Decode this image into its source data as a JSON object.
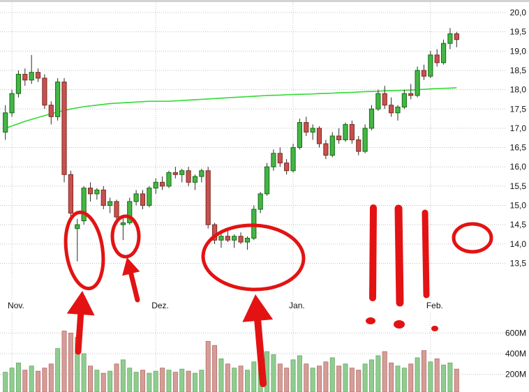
{
  "chart_data": {
    "type": "candlestick",
    "title": "",
    "price_axis": {
      "side": "right",
      "range": [
        13.3,
        20.3
      ],
      "ticks": [
        {
          "value": 20.0,
          "label": "20,0"
        },
        {
          "value": 19.5,
          "label": "19,5"
        },
        {
          "value": 19.0,
          "label": "19,0"
        },
        {
          "value": 18.5,
          "label": "18,5"
        },
        {
          "value": 18.0,
          "label": "18,0"
        },
        {
          "value": 17.5,
          "label": "17,5"
        },
        {
          "value": 17.0,
          "label": "17,0"
        },
        {
          "value": 16.5,
          "label": "16,5"
        },
        {
          "value": 16.0,
          "label": "16,0"
        },
        {
          "value": 15.5,
          "label": "15,5"
        },
        {
          "value": 15.0,
          "label": "15,0"
        },
        {
          "value": 14.5,
          "label": "14,5"
        },
        {
          "value": 14.0,
          "label": "14,0"
        },
        {
          "value": 13.5,
          "label": "13,5"
        }
      ]
    },
    "x_axis": {
      "labels": [
        {
          "index": 1,
          "label": "Nov."
        },
        {
          "index": 23,
          "label": "Dez."
        },
        {
          "index": 44,
          "label": "Jan."
        },
        {
          "index": 65,
          "label": "Feb."
        }
      ]
    },
    "volume_axis": {
      "ticks": [
        {
          "value": 600,
          "label": "600M"
        },
        {
          "value": 400,
          "label": "400M"
        },
        {
          "value": 200,
          "label": "200M"
        }
      ]
    },
    "series": {
      "candles_ohlc": [
        [
          16.9,
          17.6,
          16.7,
          17.4
        ],
        [
          17.4,
          18.0,
          17.3,
          17.9
        ],
        [
          17.9,
          18.5,
          17.8,
          18.4
        ],
        [
          18.4,
          18.55,
          18.1,
          18.25
        ],
        [
          18.25,
          18.9,
          18.15,
          18.45
        ],
        [
          18.45,
          18.55,
          18.2,
          18.3
        ],
        [
          18.3,
          18.4,
          17.5,
          17.6
        ],
        [
          17.6,
          17.7,
          17.1,
          17.3
        ],
        [
          17.3,
          18.3,
          17.2,
          18.2
        ],
        [
          18.2,
          18.3,
          15.6,
          15.8
        ],
        [
          15.8,
          15.9,
          14.6,
          14.8
        ],
        [
          14.4,
          14.65,
          13.55,
          14.5
        ],
        [
          14.6,
          15.5,
          14.5,
          15.45
        ],
        [
          15.45,
          15.6,
          15.1,
          15.3
        ],
        [
          15.3,
          15.45,
          15.15,
          15.4
        ],
        [
          15.4,
          15.5,
          14.9,
          15.0
        ],
        [
          15.0,
          15.2,
          14.8,
          15.1
        ],
        [
          15.1,
          15.15,
          14.5,
          14.7
        ],
        [
          14.5,
          14.7,
          14.1,
          14.55
        ],
        [
          14.55,
          15.2,
          14.5,
          15.1
        ],
        [
          15.1,
          15.4,
          15.0,
          15.3
        ],
        [
          15.3,
          15.4,
          14.9,
          15.0
        ],
        [
          15.0,
          15.5,
          14.95,
          15.45
        ],
        [
          15.45,
          15.7,
          15.3,
          15.6
        ],
        [
          15.6,
          15.75,
          15.4,
          15.5
        ],
        [
          15.5,
          15.9,
          15.45,
          15.85
        ],
        [
          15.85,
          16.0,
          15.7,
          15.8
        ],
        [
          15.8,
          15.95,
          15.6,
          15.9
        ],
        [
          15.9,
          16.0,
          15.5,
          15.6
        ],
        [
          15.6,
          15.8,
          15.4,
          15.75
        ],
        [
          15.75,
          15.95,
          15.6,
          15.9
        ],
        [
          15.9,
          16.0,
          14.4,
          14.5
        ],
        [
          14.5,
          14.55,
          14.0,
          14.1
        ],
        [
          14.1,
          14.3,
          13.9,
          14.2
        ],
        [
          14.2,
          14.35,
          14.05,
          14.1
        ],
        [
          14.1,
          14.25,
          13.9,
          14.2
        ],
        [
          14.2,
          14.3,
          14.0,
          14.05
        ],
        [
          14.05,
          14.2,
          13.85,
          14.15
        ],
        [
          14.15,
          15.0,
          14.1,
          14.9
        ],
        [
          14.9,
          15.35,
          14.8,
          15.3
        ],
        [
          15.3,
          16.1,
          15.25,
          16.0
        ],
        [
          16.0,
          16.45,
          15.9,
          16.35
        ],
        [
          16.35,
          16.5,
          16.0,
          16.1
        ],
        [
          16.1,
          16.2,
          15.8,
          15.9
        ],
        [
          15.9,
          16.6,
          15.85,
          16.5
        ],
        [
          16.5,
          17.25,
          16.45,
          17.15
        ],
        [
          17.15,
          17.3,
          16.8,
          16.9
        ],
        [
          16.9,
          17.1,
          16.7,
          17.0
        ],
        [
          17.0,
          17.05,
          16.5,
          16.6
        ],
        [
          16.6,
          16.7,
          16.2,
          16.3
        ],
        [
          16.3,
          16.9,
          16.25,
          16.8
        ],
        [
          16.8,
          17.0,
          16.6,
          16.7
        ],
        [
          16.7,
          17.15,
          16.65,
          17.1
        ],
        [
          17.1,
          17.2,
          16.6,
          16.7
        ],
        [
          16.7,
          16.8,
          16.3,
          16.4
        ],
        [
          16.4,
          17.1,
          16.35,
          17.0
        ],
        [
          17.0,
          17.6,
          16.95,
          17.5
        ],
        [
          17.5,
          18.0,
          17.45,
          17.9
        ],
        [
          17.9,
          18.1,
          17.5,
          17.6
        ],
        [
          17.6,
          17.8,
          17.3,
          17.4
        ],
        [
          17.4,
          17.6,
          17.2,
          17.55
        ],
        [
          17.55,
          18.0,
          17.5,
          17.9
        ],
        [
          17.9,
          18.15,
          17.75,
          17.85
        ],
        [
          17.85,
          18.6,
          17.8,
          18.5
        ],
        [
          18.5,
          18.65,
          18.25,
          18.35
        ],
        [
          18.35,
          19.0,
          18.3,
          18.9
        ],
        [
          18.9,
          19.05,
          18.6,
          18.7
        ],
        [
          18.7,
          19.3,
          18.65,
          19.2
        ],
        [
          19.2,
          19.6,
          19.05,
          19.45
        ],
        [
          19.45,
          19.5,
          19.1,
          19.3
        ]
      ],
      "ma_line": {
        "name": "moving-average",
        "values": [
          17.0,
          17.06,
          17.12,
          17.18,
          17.23,
          17.28,
          17.33,
          17.38,
          17.42,
          17.46,
          17.5,
          17.53,
          17.56,
          17.58,
          17.6,
          17.62,
          17.64,
          17.65,
          17.66,
          17.67,
          17.68,
          17.69,
          17.7,
          17.7,
          17.7,
          17.7,
          17.71,
          17.72,
          17.73,
          17.74,
          17.75,
          17.76,
          17.77,
          17.78,
          17.79,
          17.8,
          17.81,
          17.82,
          17.83,
          17.84,
          17.85,
          17.855,
          17.86,
          17.87,
          17.875,
          17.88,
          17.885,
          17.89,
          17.9,
          17.905,
          17.91,
          17.92,
          17.925,
          17.93,
          17.94,
          17.95,
          17.955,
          17.96,
          17.97,
          17.975,
          17.98,
          17.985,
          17.99,
          18.0,
          18.01,
          18.02,
          18.03,
          18.035,
          18.04,
          18.05
        ]
      },
      "volume_millions": [
        220,
        260,
        310,
        240,
        280,
        230,
        260,
        300,
        450,
        620,
        600,
        560,
        400,
        280,
        240,
        210,
        230,
        300,
        340,
        260,
        220,
        240,
        210,
        230,
        260,
        240,
        220,
        250,
        230,
        210,
        240,
        520,
        480,
        350,
        300,
        260,
        280,
        240,
        320,
        380,
        420,
        390,
        300,
        260,
        340,
        380,
        300,
        260,
        280,
        320,
        360,
        280,
        300,
        260,
        240,
        300,
        340,
        380,
        420,
        310,
        280,
        260,
        300,
        360,
        430,
        320,
        350,
        290,
        310,
        250
      ]
    },
    "colors": {
      "up": "#45b545",
      "up_border": "#0f6e0f",
      "down": "#c8514d",
      "down_border": "#7c2a25",
      "vol_up": "#90cc90",
      "vol_up_border": "#63a763",
      "vol_down": "#d69c98",
      "vol_down_border": "#b06a65",
      "ma": "#3bdc3b",
      "grid": "#bfbfbf",
      "text": "#111111",
      "background": "#ffffff",
      "annotation": "#e31313"
    },
    "annotations": {
      "color": "#e31313",
      "ellipses": [
        {
          "name": "circle-november-lows",
          "cx": 121,
          "cy": 356,
          "rx": 26,
          "ry": 55,
          "rot": -8,
          "w": 5
        },
        {
          "name": "circle-doji",
          "cx": 180,
          "cy": 336,
          "rx": 19,
          "ry": 29,
          "rot": 0,
          "w": 5
        },
        {
          "name": "circle-january-consolidation",
          "cx": 363,
          "cy": 366,
          "rx": 72,
          "ry": 46,
          "rot": 2,
          "w": 5
        },
        {
          "name": "circle-price-level-14-5",
          "cx": 677,
          "cy": 338,
          "rx": 27,
          "ry": 20,
          "rot": 0,
          "w": 5
        }
      ],
      "arrows": [
        {
          "name": "arrow-to-november-lows",
          "tip_x": 118,
          "tip_y": 414,
          "tail_x": 112,
          "tail_y": 501,
          "head_w": 40,
          "head_l": 34,
          "shaft_w": 9
        },
        {
          "name": "arrow-to-doji",
          "tip_x": 182,
          "tip_y": 366,
          "tail_x": 197,
          "tail_y": 427,
          "head_w": 26,
          "head_l": 24,
          "shaft_w": 7
        },
        {
          "name": "arrow-to-consolidation",
          "tip_x": 366,
          "tip_y": 419,
          "tail_x": 377,
          "tail_y": 547,
          "head_w": 44,
          "head_l": 38,
          "shaft_w": 10
        }
      ],
      "exclamation_strokes": [
        {
          "x1": 535,
          "y1": 295,
          "x2": 534,
          "y2": 424,
          "w": 10
        },
        {
          "x1": 571,
          "y1": 296,
          "x2": 573,
          "y2": 431,
          "w": 11
        },
        {
          "x1": 609,
          "y1": 302,
          "x2": 611,
          "y2": 420,
          "w": 9
        }
      ],
      "exclamation_dots": [
        {
          "cx": 531,
          "cy": 457,
          "rx": 7,
          "ry": 5
        },
        {
          "cx": 572,
          "cy": 462,
          "rx": 8,
          "ry": 6
        },
        {
          "cx": 623,
          "cy": 468,
          "rx": 5,
          "ry": 4
        }
      ]
    }
  }
}
